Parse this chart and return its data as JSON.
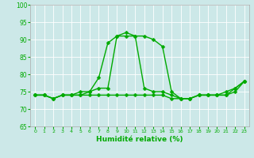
{
  "xlabel": "Humidité relative (%)",
  "x": [
    0,
    1,
    2,
    3,
    4,
    5,
    6,
    7,
    8,
    9,
    10,
    11,
    12,
    13,
    14,
    15,
    16,
    17,
    18,
    19,
    20,
    21,
    22,
    23
  ],
  "series": [
    [
      74,
      74,
      73,
      74,
      74,
      74,
      75,
      79,
      89,
      91,
      92,
      91,
      91,
      90,
      88,
      75,
      73,
      73,
      74,
      74,
      74,
      75,
      76,
      78
    ],
    [
      74,
      74,
      73,
      74,
      74,
      75,
      75,
      76,
      76,
      91,
      91,
      91,
      76,
      75,
      75,
      74,
      73,
      73,
      74,
      74,
      74,
      74,
      76,
      78
    ],
    [
      74,
      74,
      73,
      74,
      74,
      74,
      74,
      74,
      74,
      74,
      74,
      74,
      74,
      74,
      74,
      73,
      73,
      73,
      74,
      74,
      74,
      74,
      75,
      78
    ]
  ],
  "ylim": [
    65,
    100
  ],
  "yticks": [
    65,
    70,
    75,
    80,
    85,
    90,
    95,
    100
  ],
  "xticks": [
    0,
    1,
    2,
    3,
    4,
    5,
    6,
    7,
    8,
    9,
    10,
    11,
    12,
    13,
    14,
    15,
    16,
    17,
    18,
    19,
    20,
    21,
    22,
    23
  ],
  "line_color": "#00aa00",
  "bg_color": "#cce8e8",
  "grid_color": "#ffffff",
  "marker_size": 2.5,
  "linewidth": 1.0
}
